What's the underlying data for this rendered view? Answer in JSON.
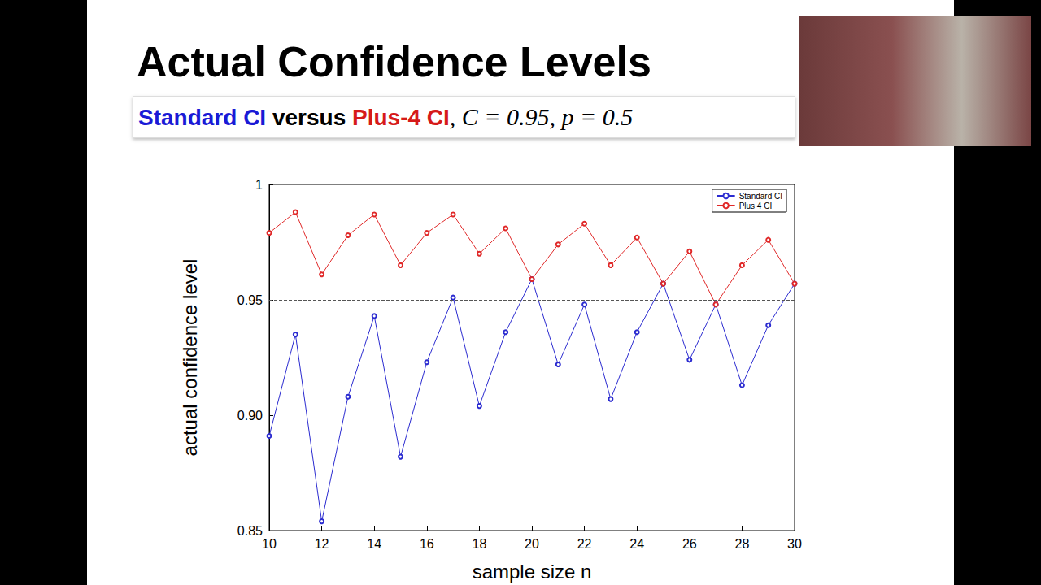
{
  "chart_data": {
    "type": "line",
    "title": "Actual Confidence Levels",
    "subtitle": [
      {
        "text": "Standard CI",
        "color": "#1a1ad6"
      },
      {
        "text": " versus ",
        "color": "#000000"
      },
      {
        "text": "Plus-4 CI",
        "color": "#d61a1a"
      },
      {
        "text": ", C = 0.95, p = 0.5",
        "color": "#000000"
      }
    ],
    "x_label": "sample size n",
    "y_label": "actual confidence level",
    "x": [
      10,
      11,
      12,
      13,
      14,
      15,
      16,
      17,
      18,
      19,
      20,
      21,
      22,
      23,
      24,
      25,
      26,
      27,
      28,
      29,
      30
    ],
    "series": [
      {
        "name": "Standard CI",
        "color": "#2b2bd0",
        "marker": "circle",
        "values": [
          0.891,
          0.935,
          0.854,
          0.908,
          0.943,
          0.882,
          0.923,
          0.951,
          0.904,
          0.936,
          0.959,
          0.922,
          0.948,
          0.907,
          0.936,
          0.957,
          0.924,
          0.948,
          0.913,
          0.939,
          0.957
        ]
      },
      {
        "name": "Plus 4 CI",
        "color": "#e02828",
        "marker": "circle",
        "values": [
          0.979,
          0.988,
          0.961,
          0.978,
          0.987,
          0.965,
          0.979,
          0.987,
          0.97,
          0.981,
          0.959,
          0.974,
          0.983,
          0.965,
          0.977,
          0.957,
          0.971,
          0.948,
          0.965,
          0.976,
          0.957
        ]
      }
    ],
    "reference_line": {
      "value": 0.95,
      "line_style": "dashed"
    },
    "xlim": [
      10,
      30
    ],
    "xticks": [
      10,
      12,
      14,
      16,
      18,
      20,
      22,
      24,
      26,
      28,
      30
    ],
    "ylim": [
      0.85,
      1
    ],
    "yticks": [
      0.85,
      {
        "value": 0.9,
        "label": "0.90"
      },
      0.95,
      1
    ],
    "grid": false,
    "legend": "upper right"
  }
}
